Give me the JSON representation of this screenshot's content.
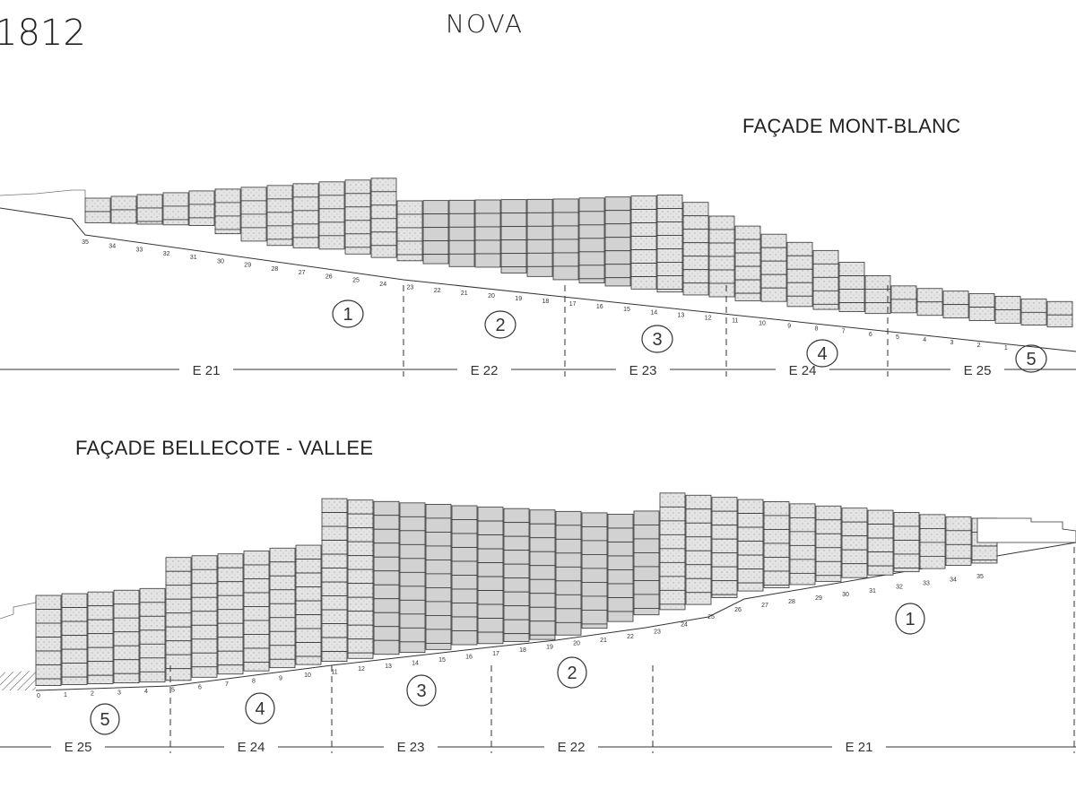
{
  "handwritten": {
    "sheet_number": "1812",
    "building": "NOVA"
  },
  "top_facade": {
    "title": "FAÇADE MONT-BLANC",
    "stages": [
      "E 21",
      "E 22",
      "E 23",
      "E 24",
      "E 25"
    ],
    "zones": [
      "1",
      "2",
      "3",
      "4",
      "5"
    ],
    "axis_numbers": [
      "35",
      "34",
      "33",
      "32",
      "31",
      "30",
      "29",
      "28",
      "27",
      "26",
      "25",
      "24",
      "23",
      "22",
      "21",
      "20",
      "19",
      "18",
      "17",
      "16",
      "15",
      "14",
      "13",
      "12",
      "11",
      "10",
      "9",
      "8",
      "7",
      "6",
      "5",
      "4",
      "3",
      "2",
      "1"
    ]
  },
  "bottom_facade": {
    "title": "FAÇADE BELLECOTE - VALLEE",
    "stages": [
      "E 25",
      "E 24",
      "E 23",
      "E 22",
      "E 21"
    ],
    "zones": [
      "5",
      "4",
      "3",
      "2",
      "1"
    ],
    "axis_numbers": [
      "0",
      "1",
      "2",
      "3",
      "4",
      "5",
      "6",
      "7",
      "8",
      "9",
      "10",
      "11",
      "12",
      "13",
      "14",
      "15",
      "16",
      "17",
      "18",
      "19",
      "20",
      "21",
      "22",
      "23",
      "24",
      "25",
      "26",
      "27",
      "28",
      "29",
      "30",
      "31",
      "32",
      "33",
      "34",
      "35"
    ]
  },
  "colors": {
    "ink": "#333333",
    "cell_fill": "#e4e4e4",
    "cell_fill_dark": "#d2d2d2"
  }
}
